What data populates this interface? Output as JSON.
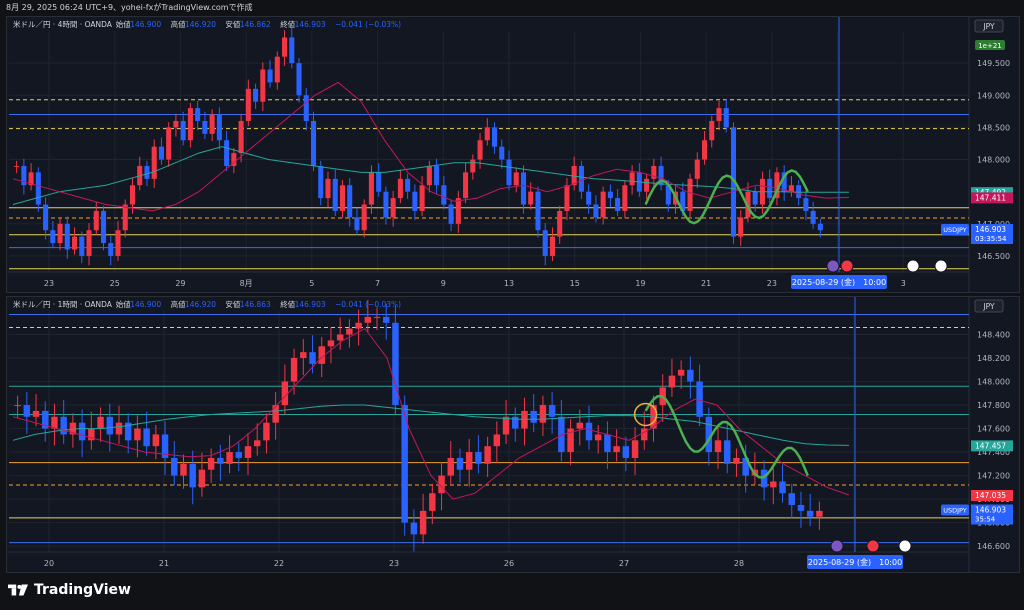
{
  "header": {
    "caption": "8月 29, 2025 06:24 UTC+9、yohei-fxがTradingView.comで作成"
  },
  "footer": {
    "brand": "TradingView"
  },
  "colors": {
    "up": "#f23645",
    "down": "#2962ff",
    "bg": "#131722",
    "grid": "#1f2430",
    "text": "#b2b5be",
    "ma_short": "#c2185b",
    "ma_long": "#26a69a",
    "yellow": "#e5d45a",
    "orange": "#f0a030",
    "hline_blue": "#3a6df0",
    "green_draw": "#4caf50"
  },
  "chart_data": [
    {
      "type": "candlestick",
      "id": "pane1",
      "legend": {
        "symbol": "米ドル／円 · 4時間 · OANDA",
        "o_label": "始値",
        "o": "146.900",
        "h_label": "高値",
        "h": "146.920",
        "l_label": "安値",
        "l": "146.862",
        "c_label": "終値",
        "c": "146.903",
        "chg": "−0.041 (−0.03%)"
      },
      "currency": "JPY",
      "badge": "1e+21",
      "ylim": [
        146.25,
        150.0
      ],
      "y_ticks": [
        "149.500",
        "149.000",
        "148.500",
        "148.000",
        "147.000",
        "146.500"
      ],
      "x_ticks": [
        "23",
        "25",
        "29",
        "8月",
        "5",
        "7",
        "9",
        "13",
        "15",
        "19",
        "21",
        "23",
        "27",
        "3"
      ],
      "date_label": "2025-08-29 (金)　10:00",
      "price_labels": [
        {
          "text": "147.492",
          "value": 147.492,
          "color": "#26a69a"
        },
        {
          "text": "147.411",
          "value": 147.411,
          "color": "#c2185b"
        },
        {
          "text": "USDJPY",
          "value": 146.903,
          "color": "#2962ff",
          "value_text": "146.903",
          "timer": "03:35:54"
        }
      ],
      "hlines": [
        {
          "value": 148.93,
          "color": "#e5d45a",
          "dash": true
        },
        {
          "value": 148.7,
          "color": "#3a6df0",
          "dash": false
        },
        {
          "value": 148.48,
          "color": "#e5d45a",
          "dash": true
        },
        {
          "value": 147.25,
          "color": "#e5d45a",
          "dash": false
        },
        {
          "value": 147.09,
          "color": "#f0a030",
          "dash": true
        },
        {
          "value": 146.83,
          "color": "#e5d45a",
          "dash": false
        },
        {
          "value": 146.63,
          "color": "#3a6df0",
          "dash": false
        },
        {
          "value": 146.3,
          "color": "#e5d45a",
          "dash": false
        }
      ],
      "closes": [
        147.9,
        147.6,
        147.8,
        147.3,
        146.9,
        146.7,
        147.0,
        146.6,
        146.8,
        146.5,
        146.9,
        147.2,
        146.7,
        146.5,
        146.9,
        147.3,
        147.6,
        147.9,
        147.7,
        148.2,
        148.0,
        148.5,
        148.6,
        148.3,
        148.8,
        148.6,
        148.4,
        148.7,
        148.3,
        147.9,
        148.1,
        148.6,
        149.1,
        148.9,
        149.4,
        149.2,
        149.6,
        149.9,
        149.5,
        149.0,
        148.6,
        147.9,
        147.4,
        147.7,
        147.2,
        147.6,
        147.1,
        146.9,
        147.3,
        147.8,
        147.5,
        147.1,
        147.4,
        147.7,
        147.5,
        147.2,
        147.6,
        147.9,
        147.6,
        147.3,
        147.0,
        147.4,
        147.8,
        148.0,
        148.3,
        148.5,
        148.2,
        148.0,
        147.6,
        147.8,
        147.3,
        147.5,
        146.9,
        146.5,
        146.8,
        147.2,
        147.6,
        147.9,
        147.5,
        147.3,
        147.1,
        147.5,
        147.4,
        147.2,
        147.6,
        147.8,
        147.5,
        147.7,
        147.9,
        147.6,
        147.3,
        147.5,
        147.2,
        147.7,
        148.0,
        148.3,
        148.6,
        148.8,
        148.5,
        146.8,
        147.1,
        147.5,
        147.3,
        147.7,
        147.4,
        147.8,
        147.5,
        147.6,
        147.4,
        147.2,
        147.0,
        146.9
      ],
      "ma_short": [
        147.7,
        147.6,
        147.5,
        147.4,
        147.3,
        147.25,
        147.2,
        147.3,
        147.5,
        147.8,
        148.1,
        148.4,
        148.7,
        149.0,
        149.2,
        148.9,
        148.3,
        147.8,
        147.5,
        147.35,
        147.4,
        147.55,
        147.6,
        147.5,
        147.6,
        147.75,
        147.85,
        147.8,
        147.7,
        147.5,
        147.4,
        147.5,
        147.6,
        147.55,
        147.45,
        147.4,
        147.411
      ],
      "ma_long": [
        147.3,
        147.4,
        147.5,
        147.55,
        147.6,
        147.7,
        147.8,
        147.95,
        148.1,
        148.2,
        148.1,
        148.0,
        147.95,
        147.9,
        147.85,
        147.8,
        147.8,
        147.85,
        147.9,
        147.95,
        147.95,
        147.9,
        147.85,
        147.8,
        147.75,
        147.7,
        147.68,
        147.65,
        147.62,
        147.6,
        147.58,
        147.55,
        147.5,
        147.5,
        147.49,
        147.49,
        147.492
      ]
    },
    {
      "type": "candlestick",
      "id": "pane2",
      "legend": {
        "symbol": "米ドル／円 · 1時間 · OANDA",
        "o_label": "始値",
        "o": "146.900",
        "h_label": "高値",
        "h": "146.920",
        "l_label": "安値",
        "l": "146.863",
        "c_label": "終値",
        "c": "146.903",
        "chg": "−0.041 (−0.03%)"
      },
      "currency": "JPY",
      "ylim": [
        146.55,
        148.6
      ],
      "y_ticks": [
        "148.400",
        "148.200",
        "148.000",
        "147.800",
        "147.600",
        "147.400",
        "147.200",
        "147.000",
        "146.800",
        "146.600"
      ],
      "x_ticks": [
        "20",
        "21",
        "22",
        "23",
        "26",
        "27",
        "28",
        "9月"
      ],
      "date_label": "2025-08-29 (金)　10:00",
      "price_labels": [
        {
          "text": "147.457",
          "value": 147.457,
          "color": "#26a69a"
        },
        {
          "text": "147.035",
          "value": 147.035,
          "color": "#f23645"
        },
        {
          "text": "USDJPY",
          "value": 146.903,
          "color": "#2962ff",
          "value_text": "146.903",
          "timer": "35:54"
        }
      ],
      "hlines": [
        {
          "value": 148.57,
          "color": "#3a6df0",
          "dash": false
        },
        {
          "value": 148.46,
          "color": "#e5d45a",
          "dash": true
        },
        {
          "value": 147.96,
          "color": "#26a69a",
          "dash": false
        },
        {
          "value": 147.72,
          "color": "#26a69a",
          "dash": false
        },
        {
          "value": 147.31,
          "color": "#f0a030",
          "dash": false
        },
        {
          "value": 147.12,
          "color": "#f0a030",
          "dash": true
        },
        {
          "value": 146.84,
          "color": "#e5d45a",
          "dash": false
        },
        {
          "value": 146.63,
          "color": "#3a6df0",
          "dash": false
        }
      ],
      "closes": [
        147.8,
        147.7,
        147.75,
        147.6,
        147.7,
        147.55,
        147.65,
        147.5,
        147.6,
        147.7,
        147.55,
        147.65,
        147.5,
        147.6,
        147.45,
        147.55,
        147.35,
        147.2,
        147.3,
        147.1,
        147.25,
        147.35,
        147.3,
        147.4,
        147.35,
        147.45,
        147.5,
        147.65,
        147.8,
        148.0,
        148.2,
        148.25,
        148.15,
        148.3,
        148.35,
        148.4,
        148.45,
        148.5,
        148.55,
        148.55,
        148.5,
        147.8,
        146.8,
        146.7,
        146.9,
        147.05,
        147.2,
        147.35,
        147.25,
        147.4,
        147.3,
        147.45,
        147.55,
        147.7,
        147.6,
        147.75,
        147.65,
        147.8,
        147.7,
        147.4,
        147.6,
        147.65,
        147.5,
        147.55,
        147.4,
        147.45,
        147.35,
        147.5,
        147.6,
        147.8,
        147.95,
        148.05,
        148.1,
        148.0,
        147.7,
        147.4,
        147.5,
        147.3,
        147.35,
        147.2,
        147.25,
        147.1,
        147.15,
        147.05,
        146.95,
        146.9,
        146.85,
        146.9
      ],
      "ma_short": [
        147.7,
        147.65,
        147.6,
        147.55,
        147.5,
        147.45,
        147.4,
        147.38,
        147.36,
        147.37,
        147.45,
        147.6,
        147.8,
        148.0,
        148.2,
        148.35,
        148.45,
        148.2,
        147.6,
        147.2,
        147.0,
        147.05,
        147.2,
        147.35,
        147.45,
        147.55,
        147.6,
        147.55,
        147.5,
        147.6,
        147.75,
        147.85,
        147.8,
        147.6,
        147.45,
        147.3,
        147.2,
        147.1,
        147.035
      ],
      "ma_long": [
        147.5,
        147.55,
        147.58,
        147.6,
        147.6,
        147.62,
        147.65,
        147.68,
        147.7,
        147.72,
        147.73,
        147.74,
        147.75,
        147.77,
        147.79,
        147.8,
        147.8,
        147.78,
        147.76,
        147.74,
        147.72,
        147.7,
        147.69,
        147.68,
        147.68,
        147.69,
        147.7,
        147.71,
        147.71,
        147.7,
        147.68,
        147.66,
        147.62,
        147.58,
        147.54,
        147.5,
        147.47,
        147.46,
        147.457
      ]
    }
  ]
}
